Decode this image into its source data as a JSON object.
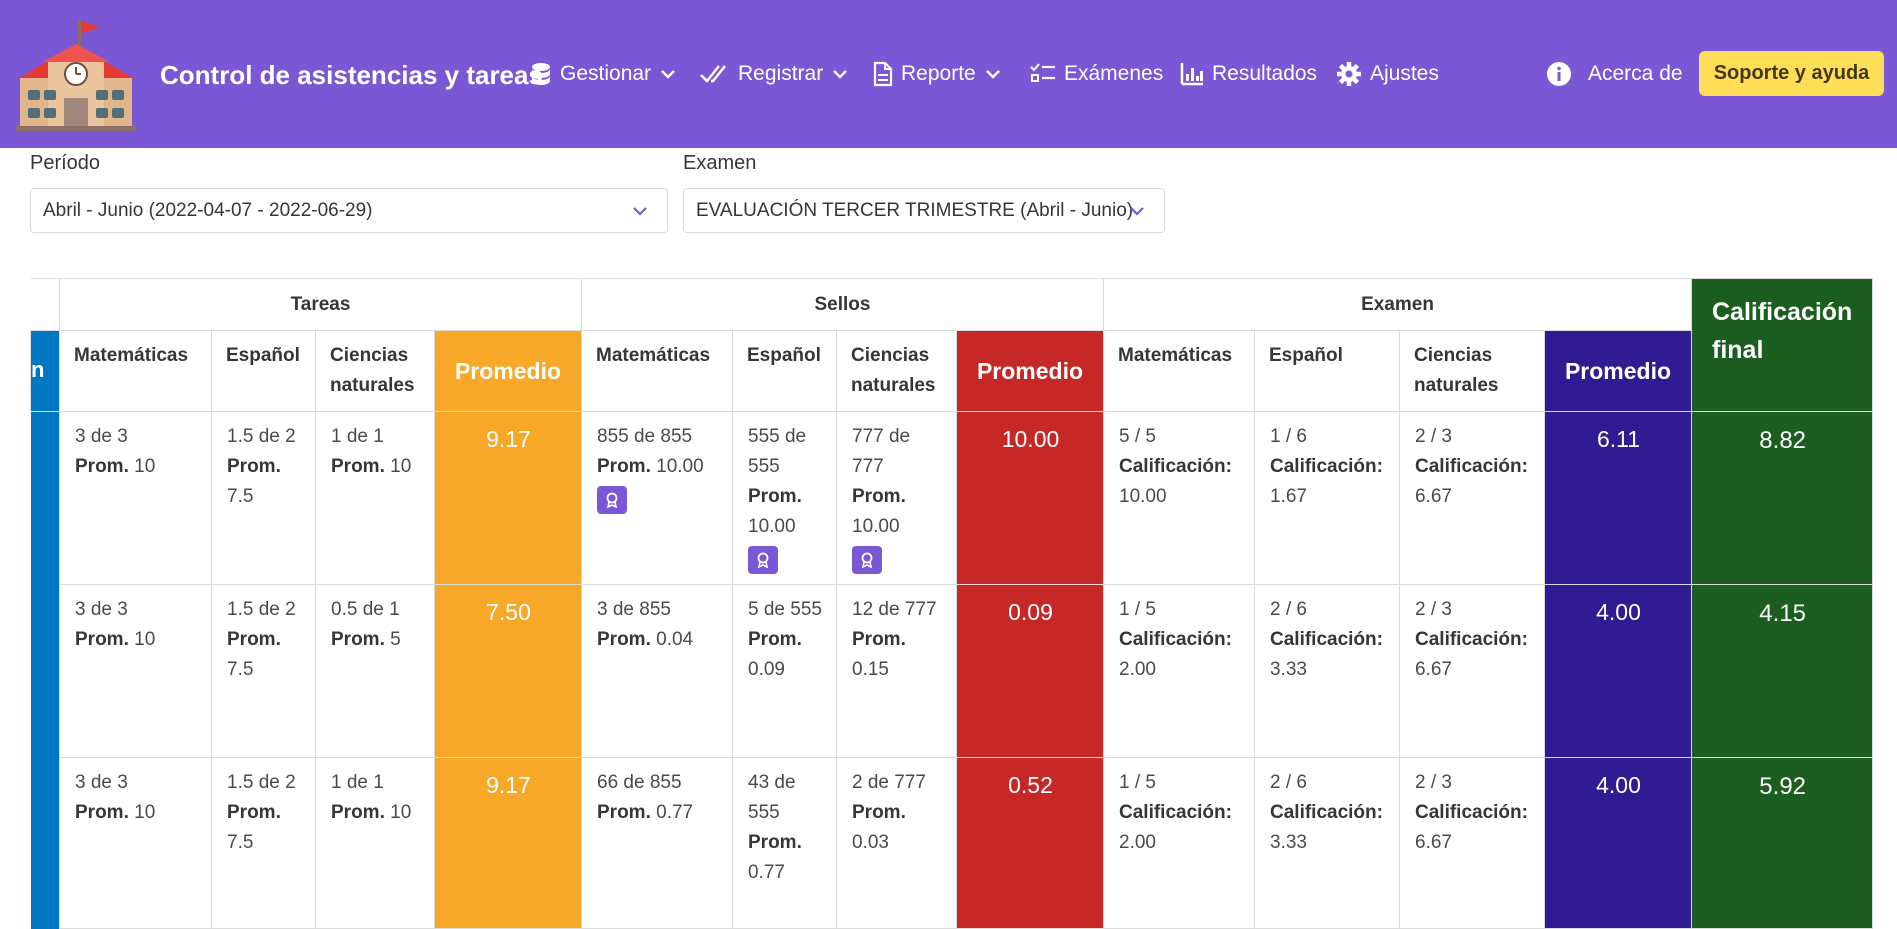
{
  "app": {
    "title": "Control de asistencias y tareas"
  },
  "nav": {
    "items": [
      {
        "label": "Gestionar",
        "icon": "database-icon",
        "dropdown": true
      },
      {
        "label": "Registrar",
        "icon": "double-check-icon",
        "dropdown": true
      },
      {
        "label": "Reporte",
        "icon": "file-icon",
        "dropdown": true
      },
      {
        "label": "Exámenes",
        "icon": "checklist-icon",
        "dropdown": false
      },
      {
        "label": "Resultados",
        "icon": "bar-chart-icon",
        "dropdown": false
      },
      {
        "label": "Ajustes",
        "icon": "gear-icon",
        "dropdown": false
      },
      {
        "label": "Acerca de",
        "icon": "info-icon",
        "dropdown": false
      }
    ],
    "support_label": "Soporte y ayuda"
  },
  "filters": {
    "period_label": "Período",
    "period_value": "Abril - Junio (2022-04-07 - 2022-06-29)",
    "exam_label": "Examen",
    "exam_value": "EVALUACIÓN TERCER TRIMESTRE (Abril - Junio)"
  },
  "table": {
    "groups": {
      "tareas": "Tareas",
      "sellos": "Sellos",
      "examen": "Examen",
      "final": "Calificación final"
    },
    "side_header": "n",
    "subjects": [
      "Matemáticas",
      "Español",
      "Ciencias naturales"
    ],
    "avg_label": "Promedio",
    "prom_label": "Prom.",
    "calif_label": "Calificación:",
    "rows": [
      {
        "tareas": [
          {
            "v": "3 de 3",
            "p": "10"
          },
          {
            "v": "1.5 de 2",
            "p": "7.5"
          },
          {
            "v": "1 de 1",
            "p": "10"
          }
        ],
        "tareas_avg": "9.17",
        "sellos": [
          {
            "v": "855 de 855",
            "p": "10.00",
            "badge": true
          },
          {
            "v": "555 de 555",
            "p": "10.00",
            "badge": true
          },
          {
            "v": "777 de 777",
            "p": "10.00",
            "badge": true
          }
        ],
        "sellos_avg": "10.00",
        "examen": [
          {
            "v": "5 / 5",
            "c": "10.00"
          },
          {
            "v": "1 / 6",
            "c": "1.67"
          },
          {
            "v": "2 / 3",
            "c": "6.67"
          }
        ],
        "examen_avg": "6.11",
        "final": "8.82"
      },
      {
        "tareas": [
          {
            "v": "3 de 3",
            "p": "10"
          },
          {
            "v": "1.5 de 2",
            "p": "7.5"
          },
          {
            "v": "0.5 de 1",
            "p": "5"
          }
        ],
        "tareas_avg": "7.50",
        "sellos": [
          {
            "v": "3 de 855",
            "p": "0.04"
          },
          {
            "v": "5 de 555",
            "p": "0.09"
          },
          {
            "v": "12 de 777",
            "p": "0.15"
          }
        ],
        "sellos_avg": "0.09",
        "examen": [
          {
            "v": "1 / 5",
            "c": "2.00"
          },
          {
            "v": "2 / 6",
            "c": "3.33"
          },
          {
            "v": "2 / 3",
            "c": "6.67"
          }
        ],
        "examen_avg": "4.00",
        "final": "4.15"
      },
      {
        "tareas": [
          {
            "v": "3 de 3",
            "p": "10"
          },
          {
            "v": "1.5 de 2",
            "p": "7.5"
          },
          {
            "v": "1 de 1",
            "p": "10"
          }
        ],
        "tareas_avg": "9.17",
        "sellos": [
          {
            "v": "66 de 855",
            "p": "0.77"
          },
          {
            "v": "43 de 555",
            "p": "0.77"
          },
          {
            "v": "2 de 777",
            "p": "0.03"
          }
        ],
        "sellos_avg": "0.52",
        "examen": [
          {
            "v": "1 / 5",
            "c": "2.00"
          },
          {
            "v": "2 / 6",
            "c": "3.33"
          },
          {
            "v": "2 / 3",
            "c": "6.67"
          }
        ],
        "examen_avg": "4.00",
        "final": "5.92"
      }
    ]
  },
  "colors": {
    "navbar": "#7957d5",
    "support": "#ffdd57",
    "tareas_avg": "#f8a829",
    "sellos_avg": "#c62828",
    "examen_avg": "#311b92",
    "final": "#1b5e20",
    "side": "#0077c2"
  }
}
